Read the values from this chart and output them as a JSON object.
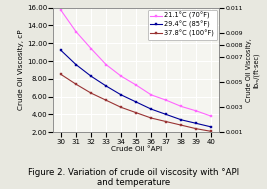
{
  "title": "Figure 2. Variation of crude oil viscosity with °API\nand temperature",
  "xlabel": "Crude Oil °API",
  "ylabel_left": "Crude Oil Viscosity, cP",
  "ylabel_right": "Crude Oil Viscosity,\nlbₘ/(ft·sec)",
  "x": [
    30,
    31,
    32,
    33,
    34,
    35,
    36,
    37,
    38,
    39,
    40
  ],
  "series": [
    {
      "label": "21.1°C (70°F)",
      "color": "#ff66ff",
      "marker": "s",
      "values": [
        15.7,
        13.3,
        11.4,
        9.6,
        8.3,
        7.3,
        6.2,
        5.6,
        4.9,
        4.4,
        3.8
      ]
    },
    {
      "label": "29.4°C (85°F)",
      "color": "#000099",
      "marker": "s",
      "values": [
        11.2,
        9.6,
        8.3,
        7.2,
        6.2,
        5.4,
        4.6,
        4.0,
        3.4,
        3.0,
        2.6
      ]
    },
    {
      "label": "37.8°C (100°F)",
      "color": "#993333",
      "marker": "s",
      "values": [
        8.5,
        7.4,
        6.4,
        5.6,
        4.8,
        4.2,
        3.6,
        3.2,
        2.8,
        2.4,
        2.1
      ]
    }
  ],
  "ylim_left": [
    2.0,
    16.0
  ],
  "ylim_right": [
    0.001,
    0.011
  ],
  "yticks_left": [
    2.0,
    4.0,
    6.0,
    8.0,
    10.0,
    12.0,
    14.0,
    16.0
  ],
  "yticks_right": [
    0.001,
    0.003,
    0.005,
    0.007,
    0.008,
    0.009,
    0.011
  ],
  "xticks": [
    30,
    31,
    32,
    33,
    34,
    35,
    36,
    37,
    38,
    39,
    40
  ],
  "plot_bg": "#f5f5f0",
  "fig_bg": "#e8e8e0",
  "grid_color": "#ffffff",
  "title_fontsize": 6.2,
  "label_fontsize": 5.2,
  "tick_fontsize": 5.0,
  "legend_fontsize": 4.8
}
